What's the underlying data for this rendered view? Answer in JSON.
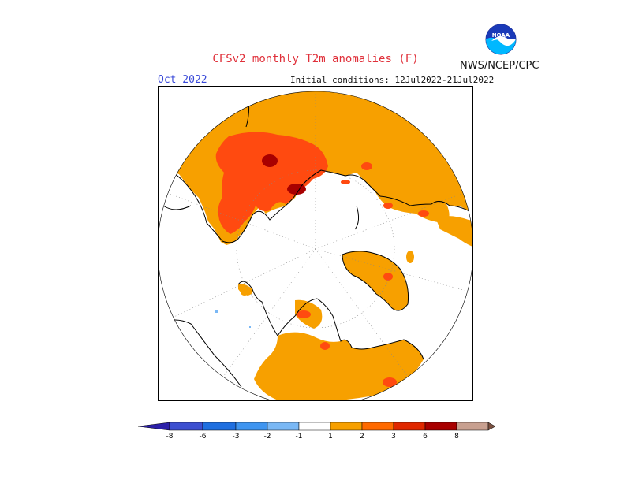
{
  "title": "CFSv2 monthly T2m anomalies (F)",
  "agency": "NWS/NCEP/CPC",
  "logo_text": "NOAA",
  "month": "Oct 2022",
  "initial_conditions": "Initial conditions: 12Jul2022-21Jul2022",
  "legend": {
    "ticks": [
      "-8",
      "-6",
      "-3",
      "-2",
      "-1",
      "1",
      "2",
      "3",
      "6",
      "8"
    ],
    "colors": [
      "#2c1fa8",
      "#3d4fd0",
      "#1f6fe0",
      "#3f95f0",
      "#7ab8f5",
      "#ffffff",
      "#f7a000",
      "#ff6a00",
      "#e02800",
      "#a80000",
      "#c8a090",
      "#7a5040"
    ]
  },
  "colors": {
    "anom_1_2": "#f7a000",
    "anom_2_3": "#ff5a10",
    "anom_3_6": "#e02e00",
    "anom_6_8": "#a80000",
    "neg_1_2": "#7ab8f5",
    "title": "#e0303a",
    "month": "#3848d8"
  }
}
